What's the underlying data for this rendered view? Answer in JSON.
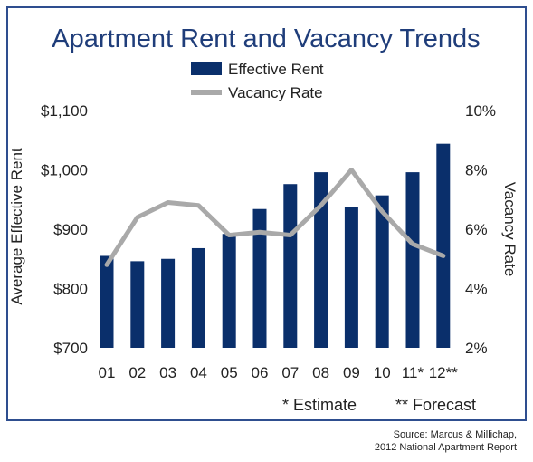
{
  "chart_data": {
    "type": "bar",
    "title": "Apartment Rent and Vacancy Trends",
    "categories": [
      "01",
      "02",
      "03",
      "04",
      "05",
      "06",
      "07",
      "08",
      "09",
      "10",
      "11*",
      "12**"
    ],
    "series": [
      {
        "name": "Effective Rent",
        "type": "bar",
        "axis": "left",
        "values": [
          855,
          846,
          850,
          868,
          892,
          934,
          976,
          996,
          938,
          957,
          996,
          1044
        ]
      },
      {
        "name": "Vacancy Rate",
        "type": "line",
        "axis": "right",
        "values": [
          4.8,
          6.4,
          6.9,
          6.8,
          5.8,
          5.9,
          5.8,
          6.8,
          8.0,
          6.6,
          5.5,
          5.1
        ]
      }
    ],
    "ylabel": "Average Effective Rent",
    "y2label": "Vacancy Rate",
    "ylim": [
      700,
      1100
    ],
    "y2lim": [
      2,
      10
    ],
    "yticks": [
      "$700",
      "$800",
      "$900",
      "$1,000",
      "$1,100"
    ],
    "y2ticks": [
      "2%",
      "4%",
      "6%",
      "8%",
      "10%"
    ],
    "legend": "top-center",
    "grid": false,
    "colors": {
      "bar": "#0a2f6b",
      "line": "#a9a9a9",
      "title": "#1f3d7a",
      "frame": "#2e4e8f"
    }
  },
  "notes": {
    "estimate": "* Estimate",
    "forecast": "** Forecast"
  },
  "source": {
    "line1": "Source: Marcus & Millichap,",
    "line2": "2012 National Apartment Report"
  }
}
